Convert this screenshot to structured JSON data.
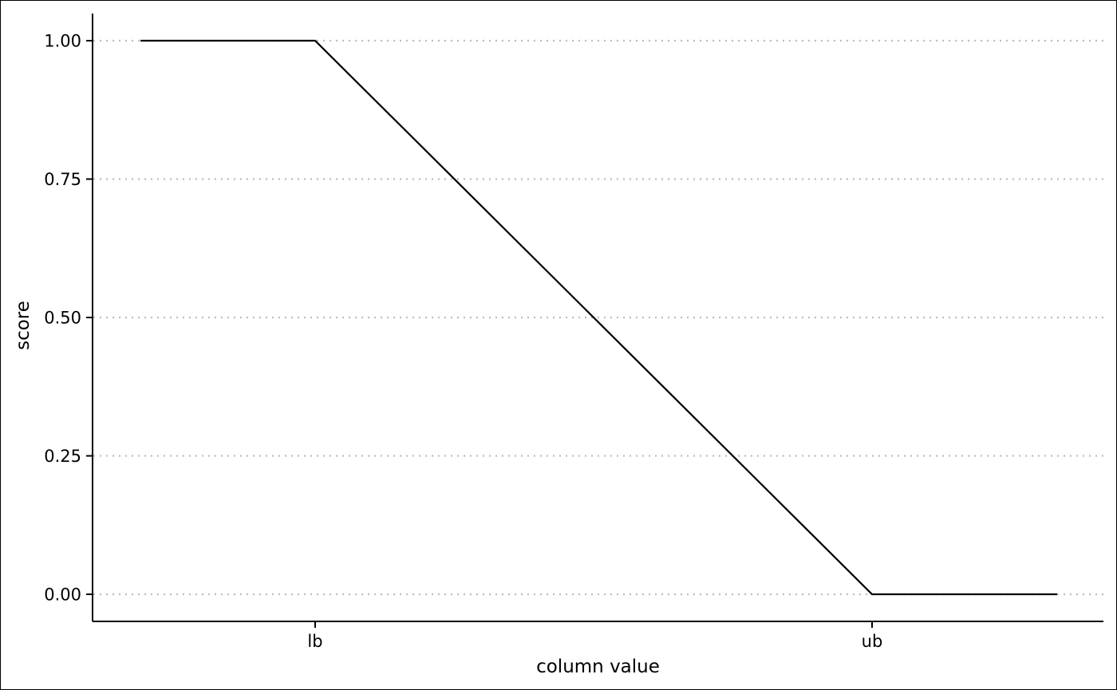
{
  "chart_data": {
    "type": "line",
    "title": "",
    "xlabel": "column value",
    "ylabel": "score",
    "x": [
      0,
      1,
      2,
      3
    ],
    "series": [
      {
        "name": "score",
        "values": [
          1.0,
          1.0,
          0.0,
          0.0
        ]
      }
    ],
    "xticks": [
      {
        "value": 1,
        "label": "lb"
      },
      {
        "value": 2,
        "label": "ub"
      }
    ],
    "yticks": [
      {
        "value": 0.0,
        "label": "0.00"
      },
      {
        "value": 0.25,
        "label": "0.25"
      },
      {
        "value": 0.5,
        "label": "0.50"
      },
      {
        "value": 0.75,
        "label": "0.75"
      },
      {
        "value": 1.0,
        "label": "1.00"
      }
    ],
    "ylim": [
      -0.05,
      1.05
    ],
    "grid": "horizontal-dotted",
    "colors": {
      "line": "#000000",
      "grid": "#bdbdbd",
      "axis": "#000000"
    }
  }
}
